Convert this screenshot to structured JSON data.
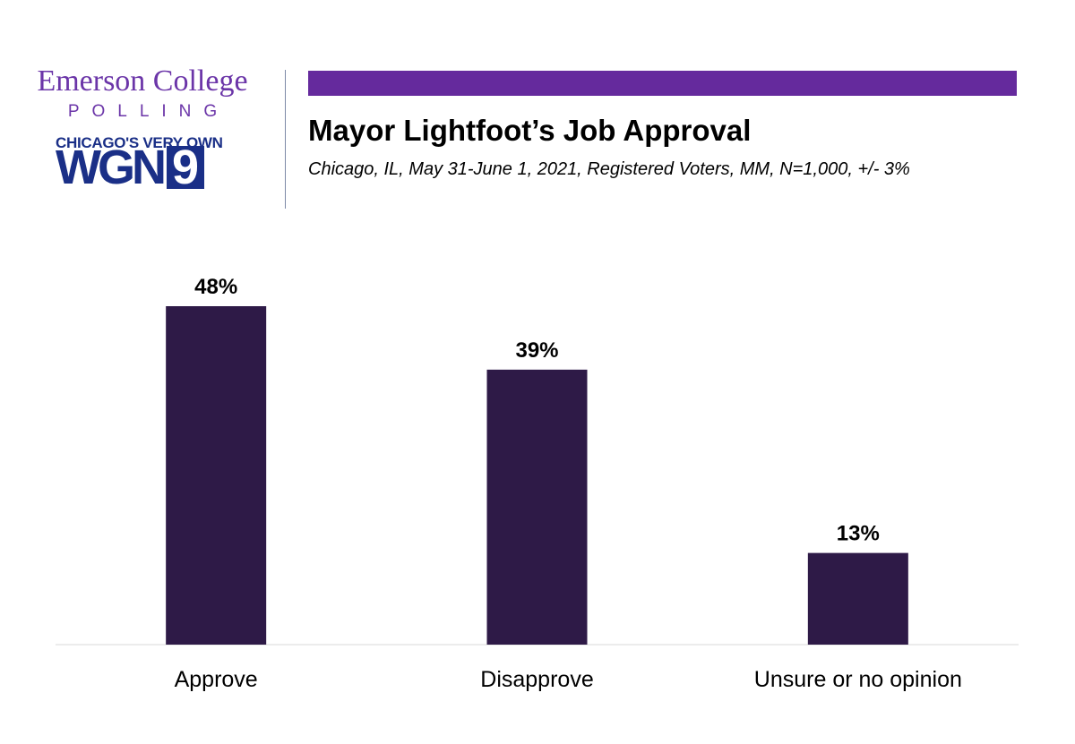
{
  "header": {
    "logo_line1": "Emerson College",
    "logo_line2": "POLLING",
    "partner_tagline": "CHICAGO'S VERY OWN",
    "partner_letters": "WGN",
    "partner_number": "9",
    "title": "Mayor Lightfoot’s Job Approval",
    "subtitle": "Chicago, IL, May 31-June 1, 2021, Registered Voters, MM, N=1,000, +/- 3%",
    "accent_color": "#652a9d",
    "logo_color": "#6b35a8",
    "partner_color": "#1a2f87"
  },
  "chart_data": {
    "type": "bar",
    "categories": [
      "Approve",
      "Disapprove",
      "Unsure or no opinion"
    ],
    "values": [
      48,
      39,
      13
    ],
    "value_labels": [
      "48%",
      "39%",
      "13%"
    ],
    "ylim": [
      0,
      60
    ],
    "bar_color": "#2e1a47",
    "grid": false,
    "legend": "none"
  }
}
